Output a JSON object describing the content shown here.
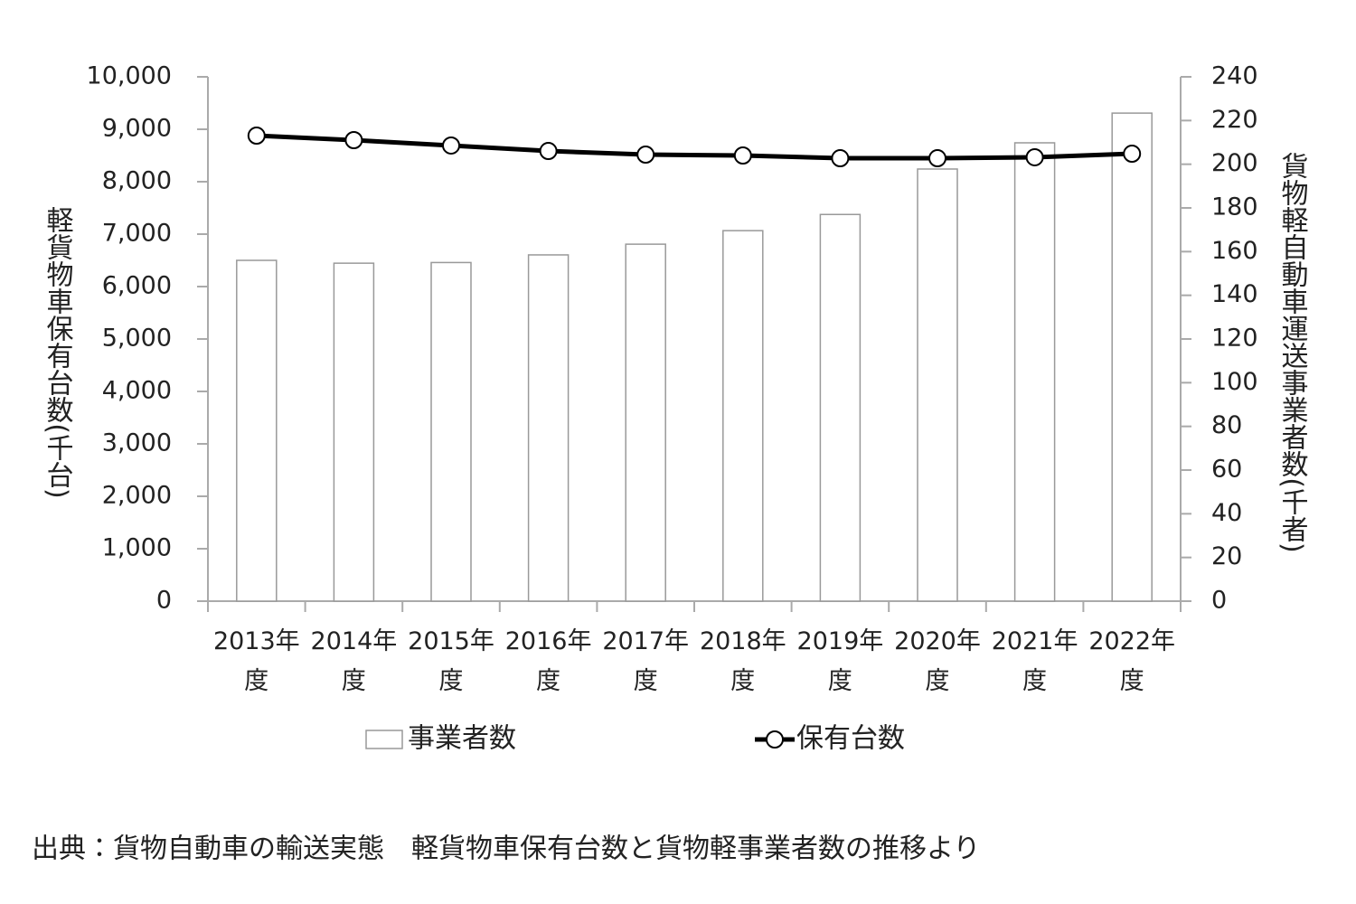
{
  "chart_data": {
    "type": "combo",
    "categories": [
      "2013年度",
      "2014年度",
      "2015年度",
      "2016年度",
      "2017年度",
      "2018年度",
      "2019年度",
      "2020年度",
      "2021年度",
      "2022年度"
    ],
    "series": [
      {
        "name": "事業者数",
        "type": "bar",
        "axis": "y2",
        "color": "#ffffff",
        "values": [
          156,
          154.7,
          155,
          158.5,
          163.4,
          169.6,
          177,
          197.8,
          209.8,
          223.4
        ]
      },
      {
        "name": "保有台数",
        "type": "line",
        "color": "#000000",
        "values": [
          8879,
          8793,
          8690,
          8586,
          8517,
          8500,
          8448,
          8448,
          8466,
          8534
        ]
      }
    ],
    "ylabel": "軽貨物車保有台数(千台)",
    "y2label": "貨物軽自動車運送事業者数(千者)",
    "ylim": [
      0,
      10000
    ],
    "yticks": [
      0,
      {
        "value": 1000,
        "label": "1,000"
      },
      {
        "value": 2000,
        "label": "2,000"
      },
      {
        "value": 3000,
        "label": "3,000"
      },
      {
        "value": 4000,
        "label": "4,000"
      },
      {
        "value": 5000,
        "label": "5,000"
      },
      {
        "value": 6000,
        "label": "6,000"
      },
      {
        "value": 7000,
        "label": "7,000"
      },
      {
        "value": 8000,
        "label": "8,000"
      },
      {
        "value": 9000,
        "label": "9,000"
      },
      {
        "value": 10000,
        "label": "10,000"
      }
    ],
    "y2lim": [
      0,
      240
    ],
    "y2ticks": [
      0,
      20,
      40,
      60,
      80,
      100,
      120,
      140,
      160,
      180,
      200,
      220,
      240
    ],
    "source": "出典：貨物自動車の輸送実態　軽貨物車保有台数と貨物軽事業者数の推移より"
  }
}
